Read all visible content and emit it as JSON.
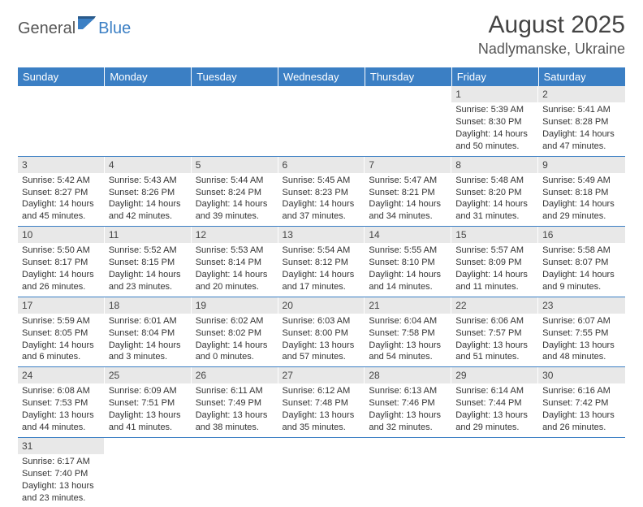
{
  "logo": {
    "part1": "General",
    "part2": "Blue"
  },
  "title": "August 2025",
  "location": "Nadlymanske, Ukraine",
  "colors": {
    "header_bg": "#3b7fc4",
    "header_text": "#ffffff",
    "daynum_bg": "#e8e8e8",
    "rule": "#3b7fc4",
    "body_text": "#333333"
  },
  "weekdays": [
    "Sunday",
    "Monday",
    "Tuesday",
    "Wednesday",
    "Thursday",
    "Friday",
    "Saturday"
  ],
  "weeks": [
    [
      null,
      null,
      null,
      null,
      null,
      {
        "n": "1",
        "sr": "5:39 AM",
        "ss": "8:30 PM",
        "dl": "14 hours and 50 minutes."
      },
      {
        "n": "2",
        "sr": "5:41 AM",
        "ss": "8:28 PM",
        "dl": "14 hours and 47 minutes."
      }
    ],
    [
      {
        "n": "3",
        "sr": "5:42 AM",
        "ss": "8:27 PM",
        "dl": "14 hours and 45 minutes."
      },
      {
        "n": "4",
        "sr": "5:43 AM",
        "ss": "8:26 PM",
        "dl": "14 hours and 42 minutes."
      },
      {
        "n": "5",
        "sr": "5:44 AM",
        "ss": "8:24 PM",
        "dl": "14 hours and 39 minutes."
      },
      {
        "n": "6",
        "sr": "5:45 AM",
        "ss": "8:23 PM",
        "dl": "14 hours and 37 minutes."
      },
      {
        "n": "7",
        "sr": "5:47 AM",
        "ss": "8:21 PM",
        "dl": "14 hours and 34 minutes."
      },
      {
        "n": "8",
        "sr": "5:48 AM",
        "ss": "8:20 PM",
        "dl": "14 hours and 31 minutes."
      },
      {
        "n": "9",
        "sr": "5:49 AM",
        "ss": "8:18 PM",
        "dl": "14 hours and 29 minutes."
      }
    ],
    [
      {
        "n": "10",
        "sr": "5:50 AM",
        "ss": "8:17 PM",
        "dl": "14 hours and 26 minutes."
      },
      {
        "n": "11",
        "sr": "5:52 AM",
        "ss": "8:15 PM",
        "dl": "14 hours and 23 minutes."
      },
      {
        "n": "12",
        "sr": "5:53 AM",
        "ss": "8:14 PM",
        "dl": "14 hours and 20 minutes."
      },
      {
        "n": "13",
        "sr": "5:54 AM",
        "ss": "8:12 PM",
        "dl": "14 hours and 17 minutes."
      },
      {
        "n": "14",
        "sr": "5:55 AM",
        "ss": "8:10 PM",
        "dl": "14 hours and 14 minutes."
      },
      {
        "n": "15",
        "sr": "5:57 AM",
        "ss": "8:09 PM",
        "dl": "14 hours and 11 minutes."
      },
      {
        "n": "16",
        "sr": "5:58 AM",
        "ss": "8:07 PM",
        "dl": "14 hours and 9 minutes."
      }
    ],
    [
      {
        "n": "17",
        "sr": "5:59 AM",
        "ss": "8:05 PM",
        "dl": "14 hours and 6 minutes."
      },
      {
        "n": "18",
        "sr": "6:01 AM",
        "ss": "8:04 PM",
        "dl": "14 hours and 3 minutes."
      },
      {
        "n": "19",
        "sr": "6:02 AM",
        "ss": "8:02 PM",
        "dl": "14 hours and 0 minutes."
      },
      {
        "n": "20",
        "sr": "6:03 AM",
        "ss": "8:00 PM",
        "dl": "13 hours and 57 minutes."
      },
      {
        "n": "21",
        "sr": "6:04 AM",
        "ss": "7:58 PM",
        "dl": "13 hours and 54 minutes."
      },
      {
        "n": "22",
        "sr": "6:06 AM",
        "ss": "7:57 PM",
        "dl": "13 hours and 51 minutes."
      },
      {
        "n": "23",
        "sr": "6:07 AM",
        "ss": "7:55 PM",
        "dl": "13 hours and 48 minutes."
      }
    ],
    [
      {
        "n": "24",
        "sr": "6:08 AM",
        "ss": "7:53 PM",
        "dl": "13 hours and 44 minutes."
      },
      {
        "n": "25",
        "sr": "6:09 AM",
        "ss": "7:51 PM",
        "dl": "13 hours and 41 minutes."
      },
      {
        "n": "26",
        "sr": "6:11 AM",
        "ss": "7:49 PM",
        "dl": "13 hours and 38 minutes."
      },
      {
        "n": "27",
        "sr": "6:12 AM",
        "ss": "7:48 PM",
        "dl": "13 hours and 35 minutes."
      },
      {
        "n": "28",
        "sr": "6:13 AM",
        "ss": "7:46 PM",
        "dl": "13 hours and 32 minutes."
      },
      {
        "n": "29",
        "sr": "6:14 AM",
        "ss": "7:44 PM",
        "dl": "13 hours and 29 minutes."
      },
      {
        "n": "30",
        "sr": "6:16 AM",
        "ss": "7:42 PM",
        "dl": "13 hours and 26 minutes."
      }
    ],
    [
      {
        "n": "31",
        "sr": "6:17 AM",
        "ss": "7:40 PM",
        "dl": "13 hours and 23 minutes."
      },
      null,
      null,
      null,
      null,
      null,
      null
    ]
  ],
  "labels": {
    "sunrise": "Sunrise:",
    "sunset": "Sunset:",
    "daylight": "Daylight:"
  }
}
